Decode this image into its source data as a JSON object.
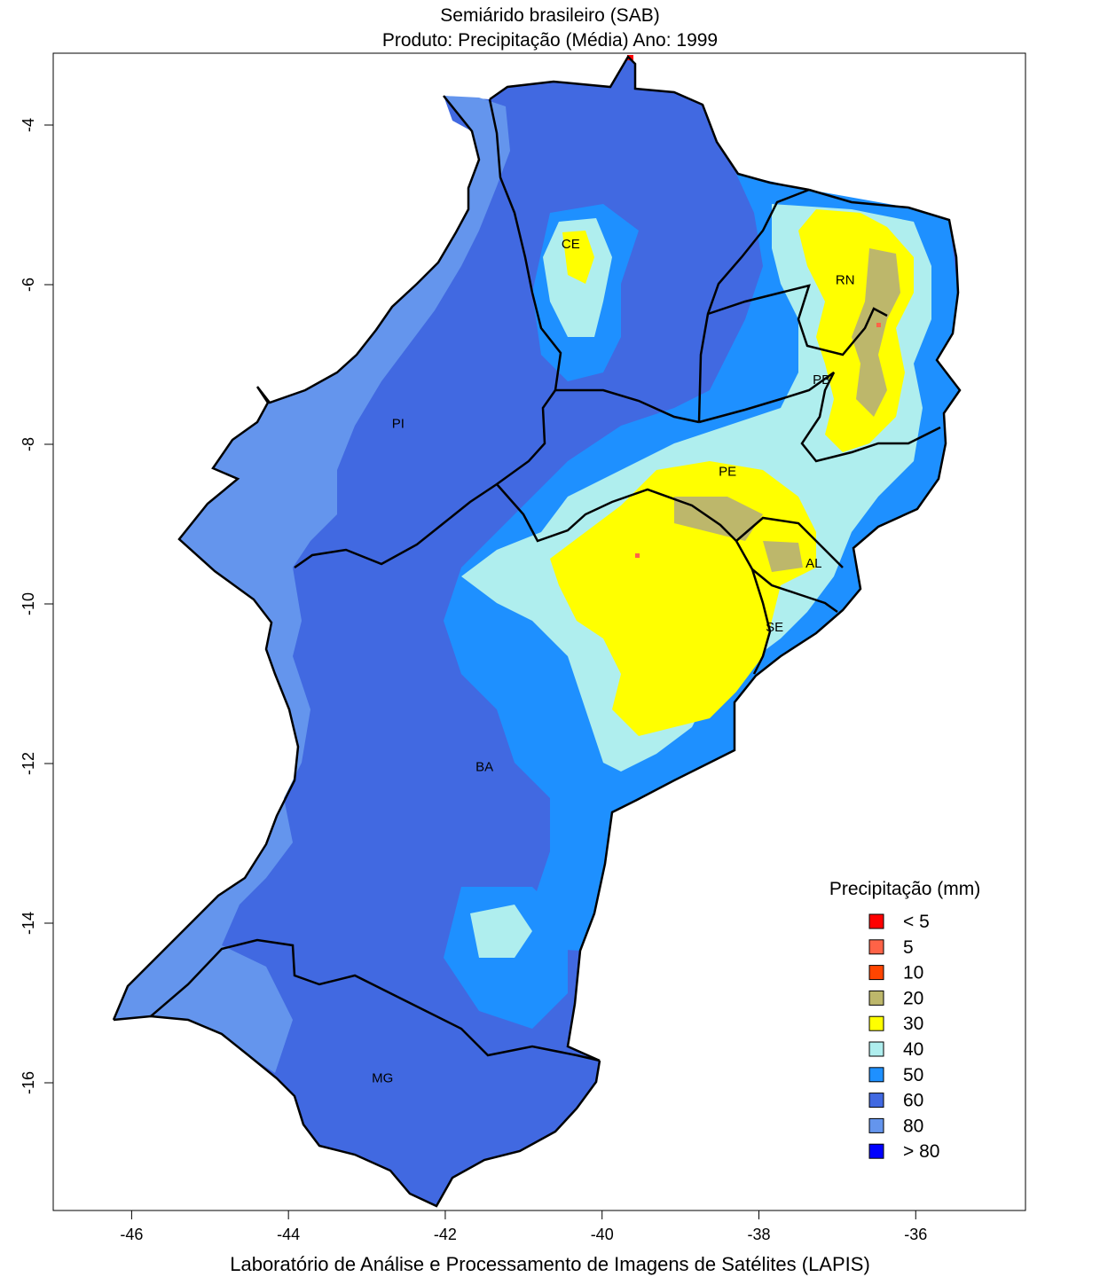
{
  "header": {
    "title_line1": "Semiárido brasileiro (SAB)",
    "title_line2": "Produto: Precipitação (Média)     Ano:  1999"
  },
  "footer": {
    "credit": "Laboratório de Análise e Processamento de Imagens de Satélites (LAPIS)"
  },
  "map": {
    "lon_range": [
      -47,
      -34.6
    ],
    "lat_range": [
      -17.6,
      -3.1
    ],
    "x_ticks": [
      -46,
      -44,
      -42,
      -40,
      -38,
      -36
    ],
    "y_ticks": [
      -4,
      -6,
      -8,
      -10,
      -12,
      -14,
      -16
    ],
    "states": [
      {
        "code": "CE",
        "lon": -40.4,
        "lat": -5.5
      },
      {
        "code": "RN",
        "lon": -36.9,
        "lat": -5.95
      },
      {
        "code": "PB",
        "lon": -37.2,
        "lat": -7.2
      },
      {
        "code": "PI",
        "lon": -42.6,
        "lat": -7.75
      },
      {
        "code": "PE",
        "lon": -38.4,
        "lat": -8.35
      },
      {
        "code": "AL",
        "lon": -37.3,
        "lat": -9.5
      },
      {
        "code": "SE",
        "lon": -37.8,
        "lat": -10.3
      },
      {
        "code": "BA",
        "lon": -41.5,
        "lat": -12.05
      },
      {
        "code": "MG",
        "lon": -42.8,
        "lat": -15.95
      }
    ]
  },
  "legend": {
    "title": "Precipitação (mm)",
    "position": "bottom-right",
    "items": [
      {
        "label": "< 5",
        "color": "#ff0000"
      },
      {
        "label": "5",
        "color": "#ff6347"
      },
      {
        "label": "10",
        "color": "#ff4500"
      },
      {
        "label": "20",
        "color": "#bdb76b"
      },
      {
        "label": "30",
        "color": "#ffff00"
      },
      {
        "label": "40",
        "color": "#afeeee"
      },
      {
        "label": "50",
        "color": "#1e90ff"
      },
      {
        "label": "60",
        "color": "#4169e1"
      },
      {
        "label": "80",
        "color": "#6495ed"
      },
      {
        "label": "> 80",
        "color": "#0000ff"
      }
    ]
  }
}
